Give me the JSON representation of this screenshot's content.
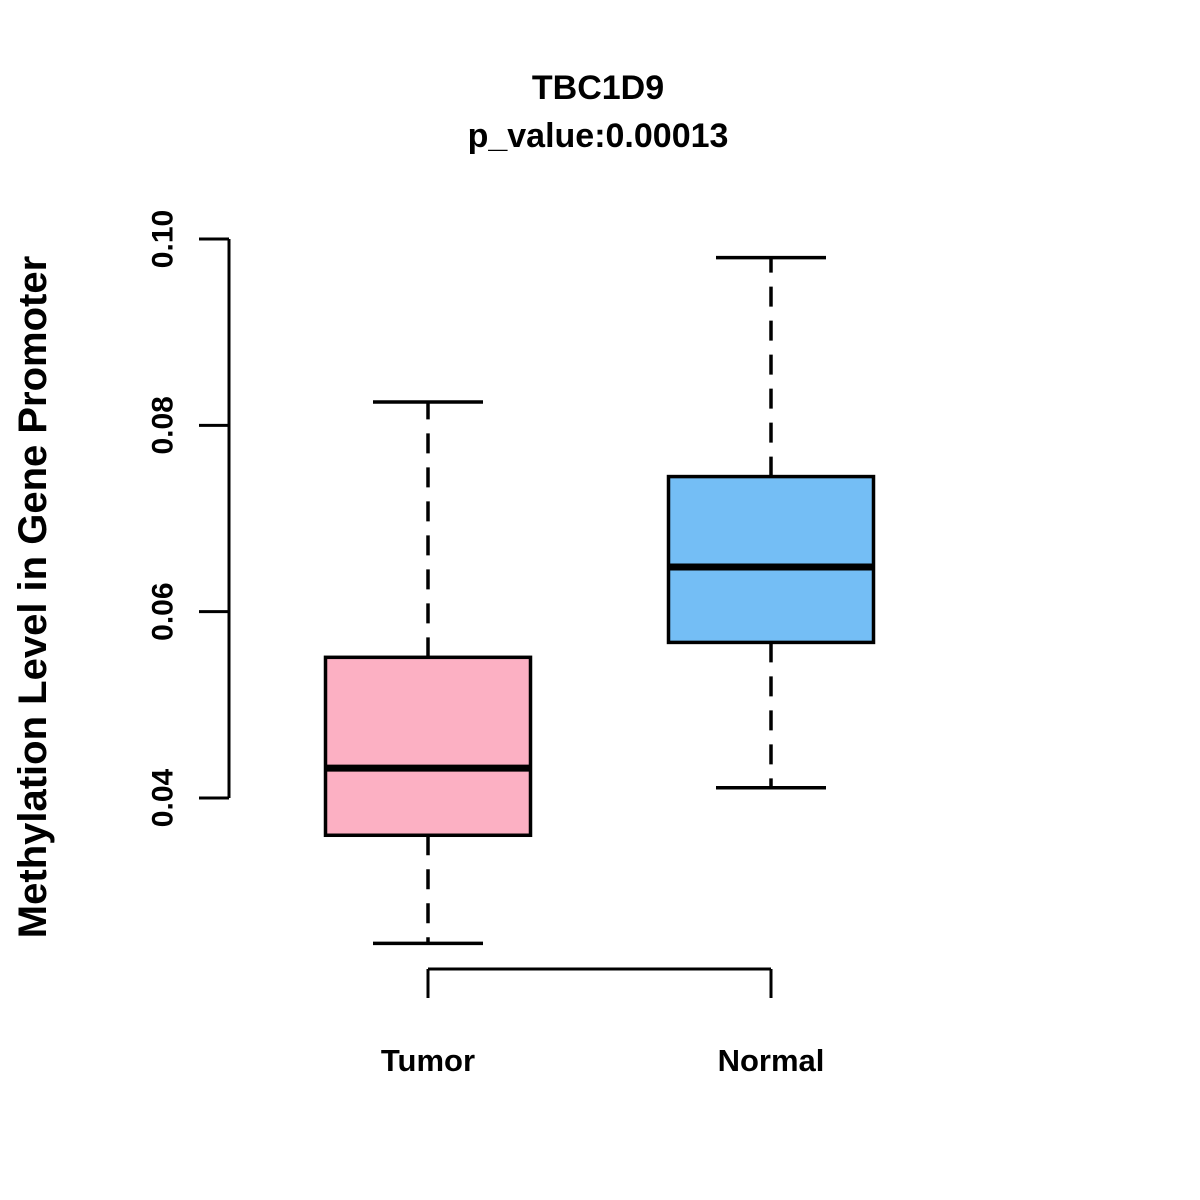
{
  "chart_data": {
    "type": "boxplot",
    "title": "TBC1D9",
    "subtitle": "p_value:0.00013",
    "ylabel": "Methylation Level in Gene Promoter",
    "xlabel": "",
    "ylim": [
      0.04,
      0.1
    ],
    "ytick_labels": [
      "0.04",
      "0.06",
      "0.08",
      "0.10"
    ],
    "ytick_values": [
      0.04,
      0.06,
      0.08,
      0.1
    ],
    "categories": [
      "Tumor",
      "Normal"
    ],
    "grid": false,
    "legend": false,
    "series": [
      {
        "name": "Tumor",
        "color": "#FCB0C3",
        "lower_whisker": 0.0244,
        "q1": 0.036,
        "median": 0.0432,
        "q3": 0.0551,
        "upper_whisker": 0.0825
      },
      {
        "name": "Normal",
        "color": "#74BEF5",
        "lower_whisker": 0.0411,
        "q1": 0.0567,
        "median": 0.0648,
        "q3": 0.0745,
        "upper_whisker": 0.098
      }
    ],
    "colors": {
      "stroke": "#000000",
      "median": "#000000",
      "background": "#FFFFFF"
    }
  }
}
